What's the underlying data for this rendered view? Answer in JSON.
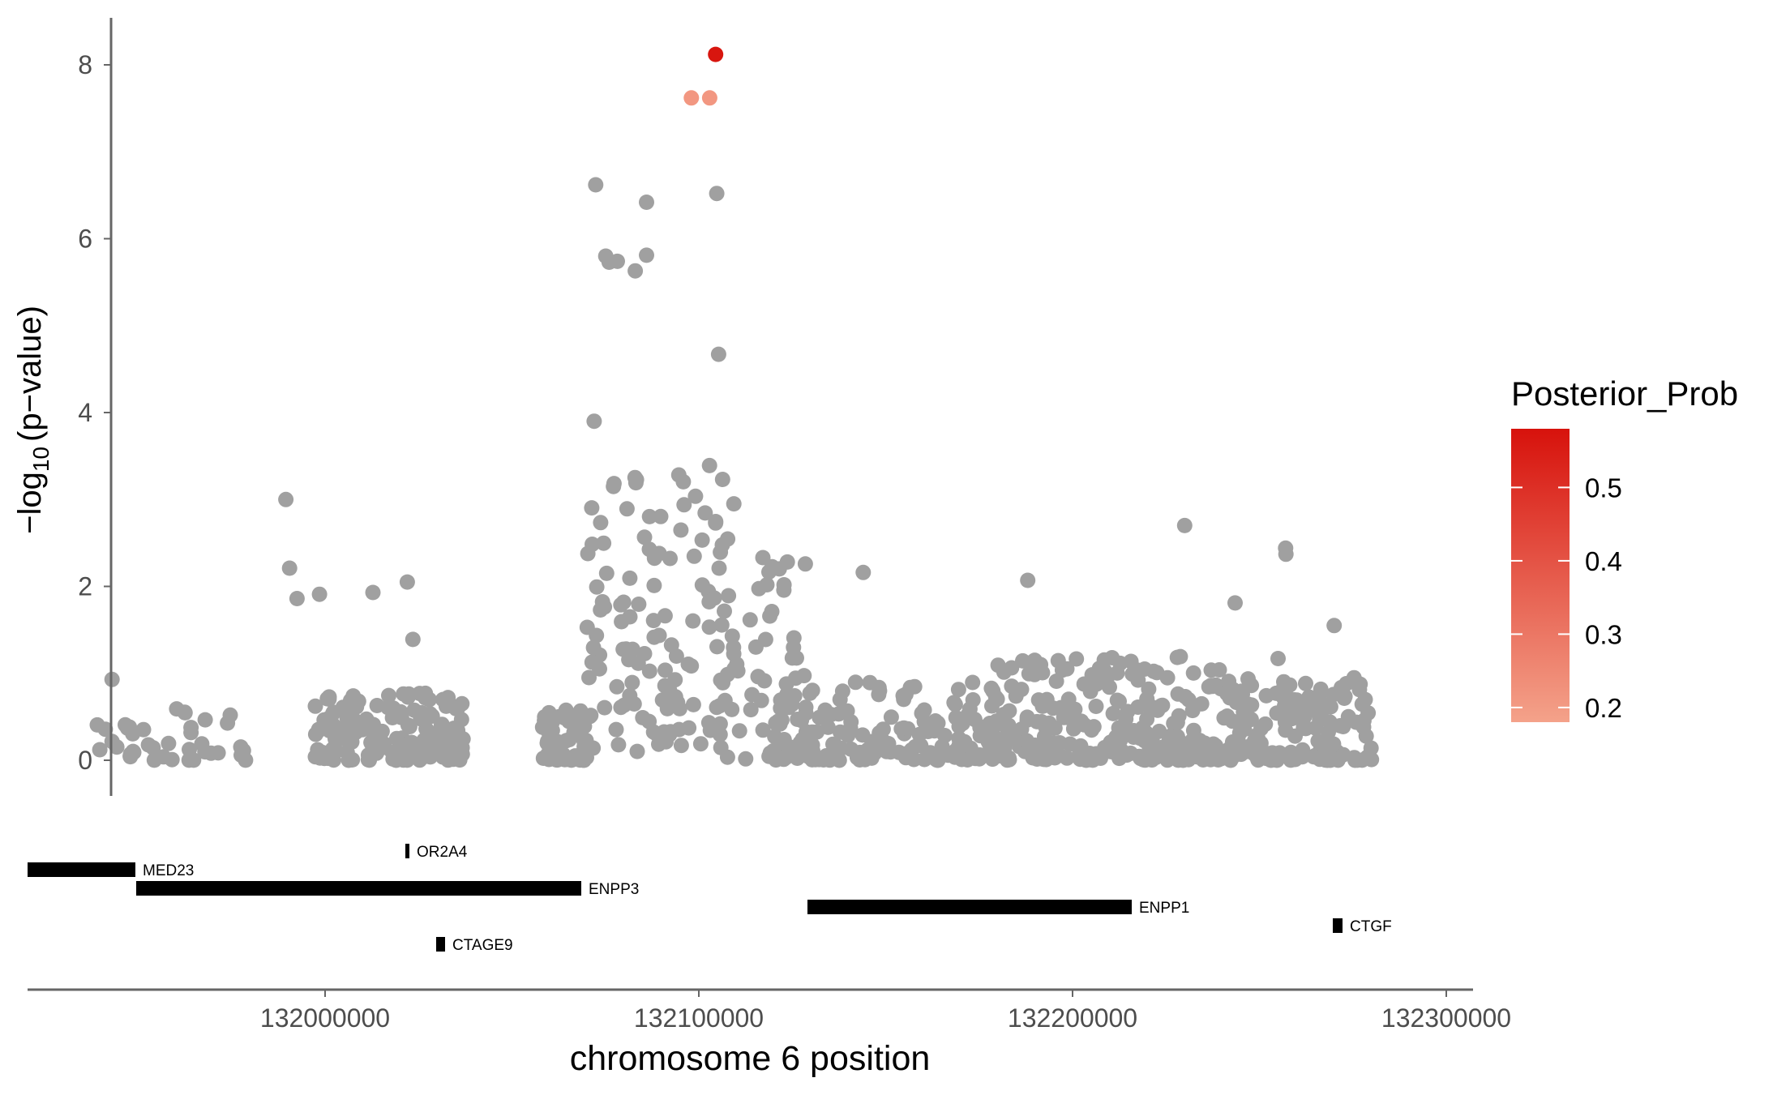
{
  "chart_data": {
    "type": "scatter",
    "title": "",
    "xlabel": "chromosome 6 position",
    "ylabel_prefix": "−log",
    "ylabel_sub": "10",
    "ylabel_suffix": "(p−value)",
    "xlim": [
      131920000,
      132310000
    ],
    "ylim": [
      -0.2,
      8.5
    ],
    "x_ticks": [
      132000000,
      132100000,
      132200000,
      132300000
    ],
    "x_tick_labels": [
      "132000000",
      "132100000",
      "132200000",
      "132300000"
    ],
    "y_ticks": [
      0,
      2,
      4,
      6,
      8
    ],
    "y_tick_labels": [
      "0",
      "2",
      "4",
      "6",
      "8"
    ],
    "grid": false,
    "point_color_default": "#a0a0a0",
    "legend": {
      "title": "Posterior_Prob",
      "placement": "right",
      "range": [
        0.18,
        0.58
      ],
      "ticks": [
        0.2,
        0.3,
        0.4,
        0.5
      ],
      "tick_labels": [
        "0.2",
        "0.3",
        "0.4",
        "0.5"
      ],
      "color_low": "#f4a28a",
      "color_high": "#d7120c"
    },
    "highlighted_points": [
      {
        "x": 132104500,
        "y": 8.12,
        "posterior": 0.57
      },
      {
        "x": 132098000,
        "y": 7.62,
        "posterior": 0.21
      },
      {
        "x": 132102900,
        "y": 7.62,
        "posterior": 0.21
      }
    ],
    "notable_points": [
      {
        "x": 132072400,
        "y": 6.62
      },
      {
        "x": 132104800,
        "y": 6.52
      },
      {
        "x": 132086000,
        "y": 6.42
      },
      {
        "x": 132075100,
        "y": 5.8
      },
      {
        "x": 132078200,
        "y": 5.74
      },
      {
        "x": 132076000,
        "y": 5.73
      },
      {
        "x": 132086000,
        "y": 5.81
      },
      {
        "x": 132083000,
        "y": 5.63
      },
      {
        "x": 132105300,
        "y": 4.67
      },
      {
        "x": 132072000,
        "y": 3.9
      },
      {
        "x": 131989500,
        "y": 3.0
      },
      {
        "x": 132230000,
        "y": 2.7
      },
      {
        "x": 132257000,
        "y": 2.44
      },
      {
        "x": 132257100,
        "y": 2.37
      },
      {
        "x": 131990500,
        "y": 2.21
      },
      {
        "x": 132144000,
        "y": 2.16
      },
      {
        "x": 132188000,
        "y": 2.07
      },
      {
        "x": 132022000,
        "y": 2.05
      },
      {
        "x": 132012800,
        "y": 1.93
      },
      {
        "x": 131998500,
        "y": 1.91
      },
      {
        "x": 131992500,
        "y": 1.86
      },
      {
        "x": 132243500,
        "y": 1.81
      },
      {
        "x": 132023500,
        "y": 1.39
      },
      {
        "x": 131943000,
        "y": 0.93
      },
      {
        "x": 132255000,
        "y": 1.17
      },
      {
        "x": 132270000,
        "y": 1.55
      }
    ],
    "background_points": {
      "description": "",
      "clusters": [
        {
          "x_range": [
            131939000,
            131980000
          ],
          "n": 40,
          "y_max": 0.65
        },
        {
          "x_range": [
            131997000,
            132020000
          ],
          "n": 80,
          "y_max": 0.75
        },
        {
          "x_range": [
            132020000,
            132037000
          ],
          "n": 90,
          "y_max": 0.8
        },
        {
          "x_range": [
            132058000,
            132070000
          ],
          "n": 70,
          "y_max": 0.6
        },
        {
          "x_range": [
            132120000,
            132180000
          ],
          "n": 160,
          "y_max": 0.9
        },
        {
          "x_range": [
            132180000,
            132240000
          ],
          "n": 220,
          "y_max": 1.2
        },
        {
          "x_range": [
            132240000,
            132280000
          ],
          "n": 150,
          "y_max": 0.95
        }
      ]
    },
    "genes": [
      {
        "name": "MED23",
        "start": 131920000,
        "end": 131949000,
        "row": 1
      },
      {
        "name": "OR2A4",
        "start": 132021500,
        "end": 132022500,
        "row": 0
      },
      {
        "name": "ENPP3",
        "start": 131949000,
        "end": 132068000,
        "row": 2
      },
      {
        "name": "ENPP1",
        "start": 132129000,
        "end": 132216000,
        "row": 3
      },
      {
        "name": "CTGF",
        "start": 132269000,
        "end": 132272000,
        "row": 4
      },
      {
        "name": "CTAGE9",
        "start": 132031000,
        "end": 132033500,
        "row": 5
      }
    ]
  }
}
